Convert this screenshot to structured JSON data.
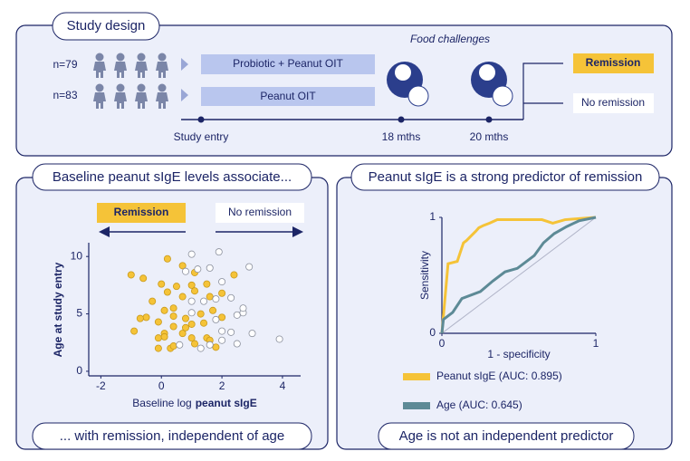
{
  "study_design": {
    "title": "Study design",
    "food_challenges": "Food challenges",
    "groups": [
      {
        "n": "n=79",
        "arm": "Probiotic + Peanut OIT"
      },
      {
        "n": "n=83",
        "arm": "Peanut OIT"
      }
    ],
    "timeline": [
      "Study entry",
      "18 mths",
      "20 mths"
    ],
    "outcomes": [
      "Remission",
      "No remission"
    ]
  },
  "chart_data": [
    {
      "type": "scatter",
      "title": "Baseline peanut sIgE levels associate...",
      "footer": "... with remission, independent of age",
      "x_label": [
        "Baseline log",
        "peanut sIgE"
      ],
      "y_label": "Age at study entry",
      "xlim": [
        -2.4,
        4.6
      ],
      "ylim": [
        -0.4,
        11.2
      ],
      "xticks": [
        -2,
        0,
        2,
        4
      ],
      "yticks": [
        0,
        5,
        10
      ],
      "series": [
        {
          "name": "Remission",
          "color": "#f5c338",
          "x": [
            0.2,
            0.7,
            -1.0,
            -0.6,
            0.0,
            0.5,
            1.1,
            1.0,
            1.5,
            2.4,
            0.2,
            0.7,
            1.1,
            1.6,
            2.0,
            -0.3,
            0.4,
            0.1,
            1.7,
            -0.5,
            -0.7,
            -0.1,
            0.4,
            0.8,
            1.0,
            1.4,
            2.0,
            -0.9,
            0.1,
            0.4,
            -0.1,
            0.1,
            0.7,
            1.0,
            1.5,
            1.6,
            -0.1,
            0.3,
            0.4,
            1.1,
            1.8,
            0.8,
            1.3
          ],
          "values": [
            9.8,
            9.2,
            8.4,
            8.1,
            7.6,
            7.4,
            8.6,
            7.5,
            7.6,
            8.4,
            6.9,
            6.5,
            7.0,
            6.5,
            6.8,
            6.1,
            5.5,
            5.3,
            5.3,
            4.7,
            4.6,
            4.3,
            4.8,
            4.6,
            4.1,
            4.2,
            4.7,
            3.5,
            3.3,
            3.9,
            2.9,
            3.0,
            3.3,
            2.9,
            2.9,
            2.7,
            2.0,
            2.0,
            2.2,
            2.4,
            2.1,
            3.8,
            5.0
          ]
        },
        {
          "name": "No remission",
          "color": "#ffffff",
          "x": [
            1.0,
            1.9,
            1.2,
            0.8,
            1.6,
            2.0,
            2.9,
            1.0,
            1.8,
            2.3,
            1.0,
            1.4,
            1.8,
            2.5,
            2.7,
            2.3,
            2.5,
            3.0,
            3.9,
            1.3,
            1.6,
            2.0,
            0.6,
            2.0,
            2.7
          ],
          "values": [
            10.2,
            10.4,
            8.9,
            8.7,
            9.0,
            7.8,
            9.1,
            6.1,
            6.3,
            6.4,
            5.1,
            6.1,
            4.5,
            4.9,
            5.1,
            3.4,
            2.4,
            3.3,
            2.8,
            2.0,
            2.3,
            3.5,
            2.3,
            2.7,
            5.5
          ]
        }
      ]
    },
    {
      "type": "line",
      "title": "Peanut sIgE is a strong predictor of remission",
      "footer": "Age is not an independent predictor",
      "x_label": "1 - specificity",
      "y_label": "Sensitivity",
      "xlim": [
        0,
        1
      ],
      "ylim": [
        0,
        1
      ],
      "xticks": [
        0,
        1
      ],
      "yticks": [
        0,
        1
      ],
      "series": [
        {
          "name": "Peanut sIgE (AUC: 0.895)",
          "color": "#f5c338",
          "x": [
            0,
            0.01,
            0.02,
            0.04,
            0.1,
            0.12,
            0.14,
            0.16,
            0.19,
            0.22,
            0.24,
            0.27,
            0.31,
            0.36,
            0.45,
            0.65,
            0.72,
            0.8,
            0.9,
            1.0
          ],
          "values": [
            0,
            0.15,
            0.3,
            0.6,
            0.62,
            0.7,
            0.78,
            0.8,
            0.84,
            0.88,
            0.91,
            0.93,
            0.95,
            0.98,
            0.98,
            0.98,
            0.95,
            0.98,
            0.99,
            1.0
          ]
        },
        {
          "name": "Age (AUC: 0.645)",
          "color": "#5d8a96",
          "x": [
            0,
            0.01,
            0.07,
            0.13,
            0.25,
            0.33,
            0.41,
            0.49,
            0.6,
            0.66,
            0.73,
            0.81,
            0.89,
            1.0
          ],
          "values": [
            0,
            0.12,
            0.18,
            0.3,
            0.36,
            0.45,
            0.53,
            0.56,
            0.67,
            0.78,
            0.86,
            0.92,
            0.97,
            1.0
          ]
        }
      ]
    }
  ]
}
